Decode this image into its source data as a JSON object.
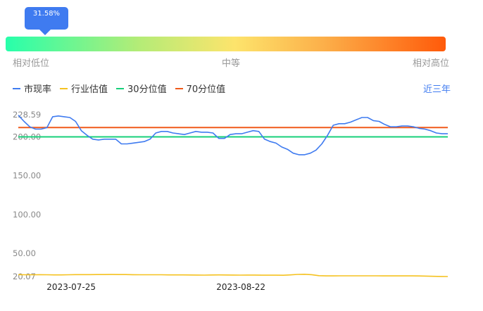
{
  "slider": {
    "percentile_label": "31.58%",
    "percentile_value": 31.58,
    "level_low": "相对低位",
    "level_mid": "中等",
    "level_high": "相对高位"
  },
  "legend": {
    "items": [
      {
        "label": "市现率",
        "color": "#3f7bf0"
      },
      {
        "label": "行业估值",
        "color": "#f5c220"
      },
      {
        "label": "30分位值",
        "color": "#17d07a"
      },
      {
        "label": "70分位值",
        "color": "#f05a1a"
      }
    ]
  },
  "range_button": "近三年",
  "chart_data": {
    "type": "line",
    "title": "",
    "xlabel": "",
    "ylabel": "",
    "y_ticks": [
      "228.59",
      "200.00",
      "150.00",
      "100.00",
      "50.00",
      "20.07"
    ],
    "ylim": [
      20.07,
      228.59
    ],
    "x_tick_labels": [
      "2023-07-25",
      "2023-08-22"
    ],
    "series": [
      {
        "name": "市现率",
        "color": "#3f7bf0",
        "values": [
          228,
          220,
          213,
          210,
          210,
          212,
          226,
          227,
          226,
          225,
          220,
          208,
          202,
          197,
          196,
          197,
          197,
          197,
          191,
          191,
          192,
          193,
          194,
          197,
          205,
          207,
          207,
          205,
          204,
          203,
          205,
          207,
          206,
          206,
          205,
          198,
          198,
          203,
          204,
          204,
          206,
          208,
          207,
          197,
          194,
          192,
          187,
          184,
          179,
          177,
          177,
          179,
          183,
          191,
          202,
          215,
          217,
          217,
          219,
          222,
          225,
          225,
          221,
          220,
          216,
          213,
          213,
          214,
          214,
          213,
          211,
          210,
          208,
          205,
          204,
          204
        ]
      },
      {
        "name": "行业估值",
        "color": "#f5c220",
        "values": [
          22.5,
          22.3,
          22.3,
          22.4,
          22.3,
          22.2,
          22.2,
          22.3,
          22.5,
          22.5,
          22.5,
          22.6,
          22.6,
          22.7,
          22.6,
          22.6,
          22.4,
          22.3,
          22.3,
          22.3,
          22.3,
          22.2,
          22.2,
          22.2,
          22.1,
          22.0,
          21.9,
          22.1,
          22.2,
          22.1,
          22.0,
          21.9,
          22.0,
          22.0,
          21.8,
          21.8,
          21.8,
          21.7,
          22.2,
          22.8,
          23.0,
          22.4,
          21.2,
          20.9,
          20.9,
          21.0,
          21.0,
          21.0,
          21.0,
          21.0,
          21.0,
          20.9,
          20.9,
          20.9,
          20.9,
          20.9,
          20.8,
          20.6,
          20.3,
          20.2,
          20.1
        ]
      },
      {
        "name": "30分位值",
        "color": "#17d07a",
        "values": [
          200.0,
          200.0
        ]
      },
      {
        "name": "70分位值",
        "color": "#f05a1a",
        "values": [
          212.0,
          212.0
        ]
      }
    ]
  }
}
